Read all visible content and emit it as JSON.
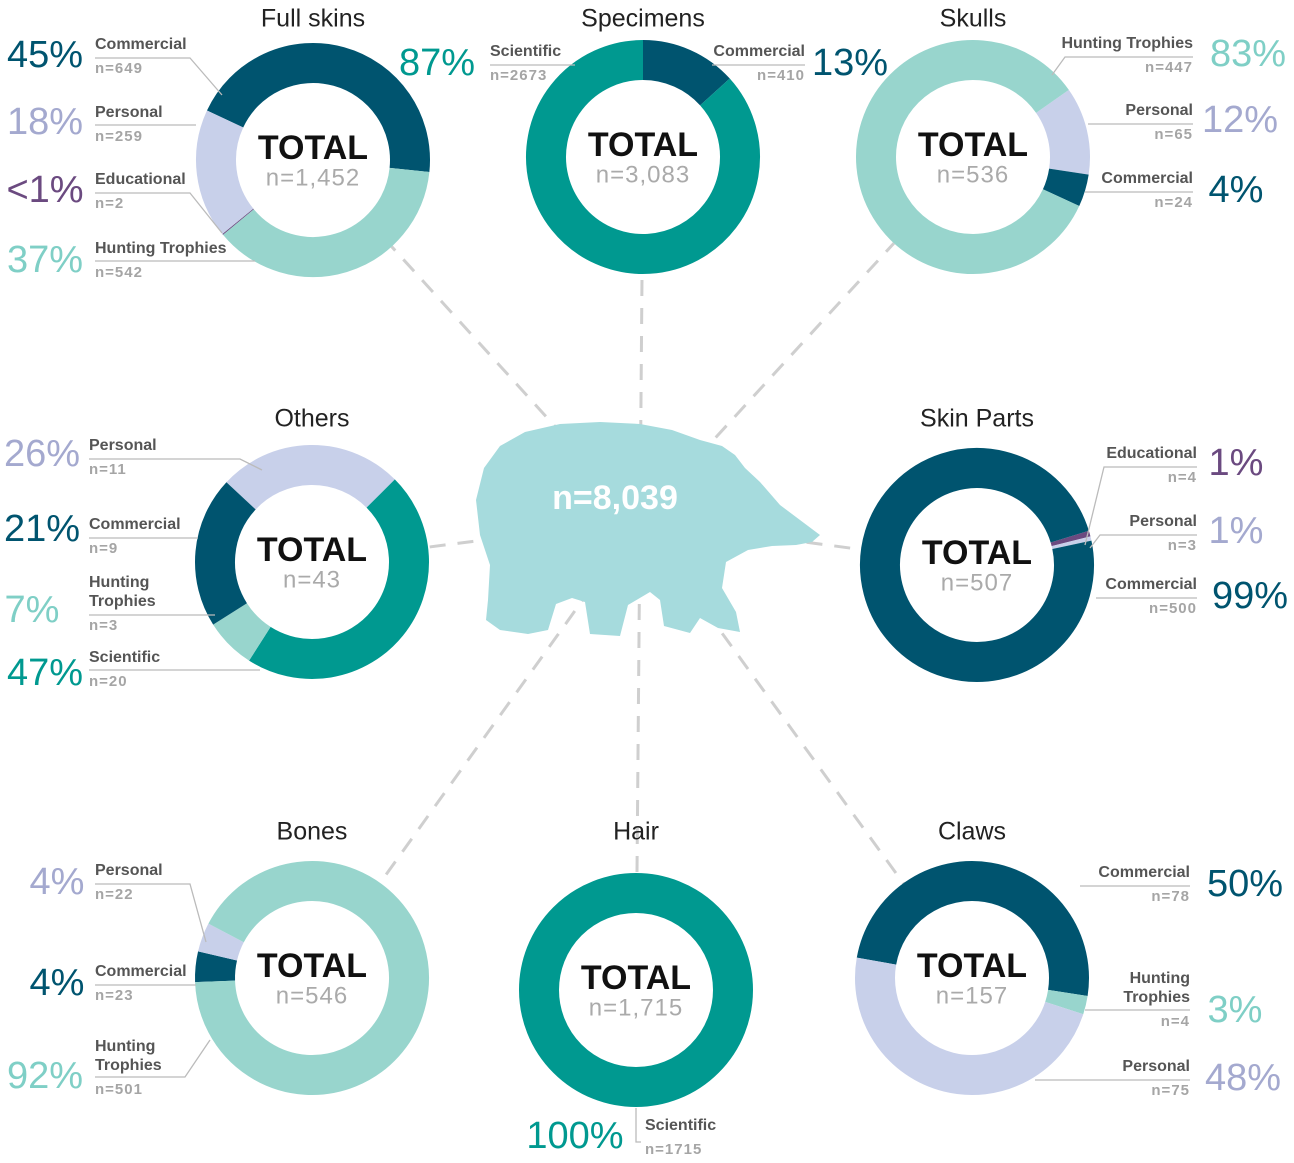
{
  "chart_data": [
    {
      "type": "donut",
      "title": "Full skins",
      "center_label": "TOTAL",
      "total": 1452,
      "total_label": "n=1,452",
      "categories": [
        "Commercial",
        "Personal",
        "Educational",
        "Hunting Trophies"
      ],
      "values": [
        649,
        259,
        2,
        542
      ],
      "value_labels": [
        "n=649",
        "n=259",
        "n=2",
        "n=542"
      ],
      "percent_labels": [
        "45%",
        "18%",
        "<1%",
        "37%"
      ],
      "colors": [
        "#00546f",
        "#c8d0ea",
        "#6b4a80",
        "#98d5cd"
      ]
    },
    {
      "type": "donut",
      "title": "Specimens",
      "center_label": "TOTAL",
      "total": 3083,
      "total_label": "n=3,083",
      "categories": [
        "Scientific",
        "Commercial"
      ],
      "values": [
        2673,
        410
      ],
      "value_labels": [
        "n=2673",
        "n=410"
      ],
      "percent_labels": [
        "87%",
        "13%"
      ],
      "colors": [
        "#009990",
        "#00546f"
      ]
    },
    {
      "type": "donut",
      "title": "Skulls",
      "center_label": "TOTAL",
      "total": 536,
      "total_label": "n=536",
      "categories": [
        "Hunting Trophies",
        "Personal",
        "Commercial"
      ],
      "values": [
        447,
        65,
        24
      ],
      "value_labels": [
        "n=447",
        "n=65",
        "n=24"
      ],
      "percent_labels": [
        "83%",
        "12%",
        "4%"
      ],
      "colors": [
        "#98d5cd",
        "#c8d0ea",
        "#00546f"
      ]
    },
    {
      "type": "donut",
      "title": "Others",
      "center_label": "TOTAL",
      "total": 43,
      "total_label": "n=43",
      "categories": [
        "Personal",
        "Commercial",
        "Hunting Trophies",
        "Scientific"
      ],
      "values": [
        11,
        9,
        3,
        20
      ],
      "value_labels": [
        "n=11",
        "n=9",
        "n=3",
        "n=20"
      ],
      "percent_labels": [
        "26%",
        "21%",
        "7%",
        "47%"
      ],
      "colors": [
        "#c8d0ea",
        "#00546f",
        "#98d5cd",
        "#009990"
      ]
    },
    {
      "type": "donut",
      "title": "Skin Parts",
      "center_label": "TOTAL",
      "total": 507,
      "total_label": "n=507",
      "categories": [
        "Educational",
        "Personal",
        "Commercial"
      ],
      "values": [
        4,
        3,
        500
      ],
      "value_labels": [
        "n=4",
        "n=3",
        "n=500"
      ],
      "percent_labels": [
        "1%",
        "1%",
        "99%"
      ],
      "colors": [
        "#6b4a80",
        "#c8d0ea",
        "#00546f"
      ]
    },
    {
      "type": "donut",
      "title": "Bones",
      "center_label": "TOTAL",
      "total": 546,
      "total_label": "n=546",
      "categories": [
        "Personal",
        "Commercial",
        "Hunting Trophies"
      ],
      "values": [
        22,
        23,
        501
      ],
      "value_labels": [
        "n=22",
        "n=23",
        "n=501"
      ],
      "percent_labels": [
        "4%",
        "4%",
        "92%"
      ],
      "colors": [
        "#c8d0ea",
        "#00546f",
        "#98d5cd"
      ]
    },
    {
      "type": "donut",
      "title": "Hair",
      "center_label": "TOTAL",
      "total": 1715,
      "total_label": "n=1,715",
      "categories": [
        "Scientific"
      ],
      "values": [
        1715
      ],
      "value_labels": [
        "n=1715"
      ],
      "percent_labels": [
        "100%"
      ],
      "colors": [
        "#009990"
      ]
    },
    {
      "type": "donut",
      "title": "Claws",
      "center_label": "TOTAL",
      "total": 157,
      "total_label": "n=157",
      "categories": [
        "Commercial",
        "Hunting Trophies",
        "Personal"
      ],
      "values": [
        78,
        4,
        75
      ],
      "value_labels": [
        "n=78",
        "n=4",
        "n=75"
      ],
      "percent_labels": [
        "50%",
        "3%",
        "48%"
      ],
      "colors": [
        "#00546f",
        "#98d5cd",
        "#c8d0ea"
      ]
    }
  ],
  "center_label": "n=8,039"
}
